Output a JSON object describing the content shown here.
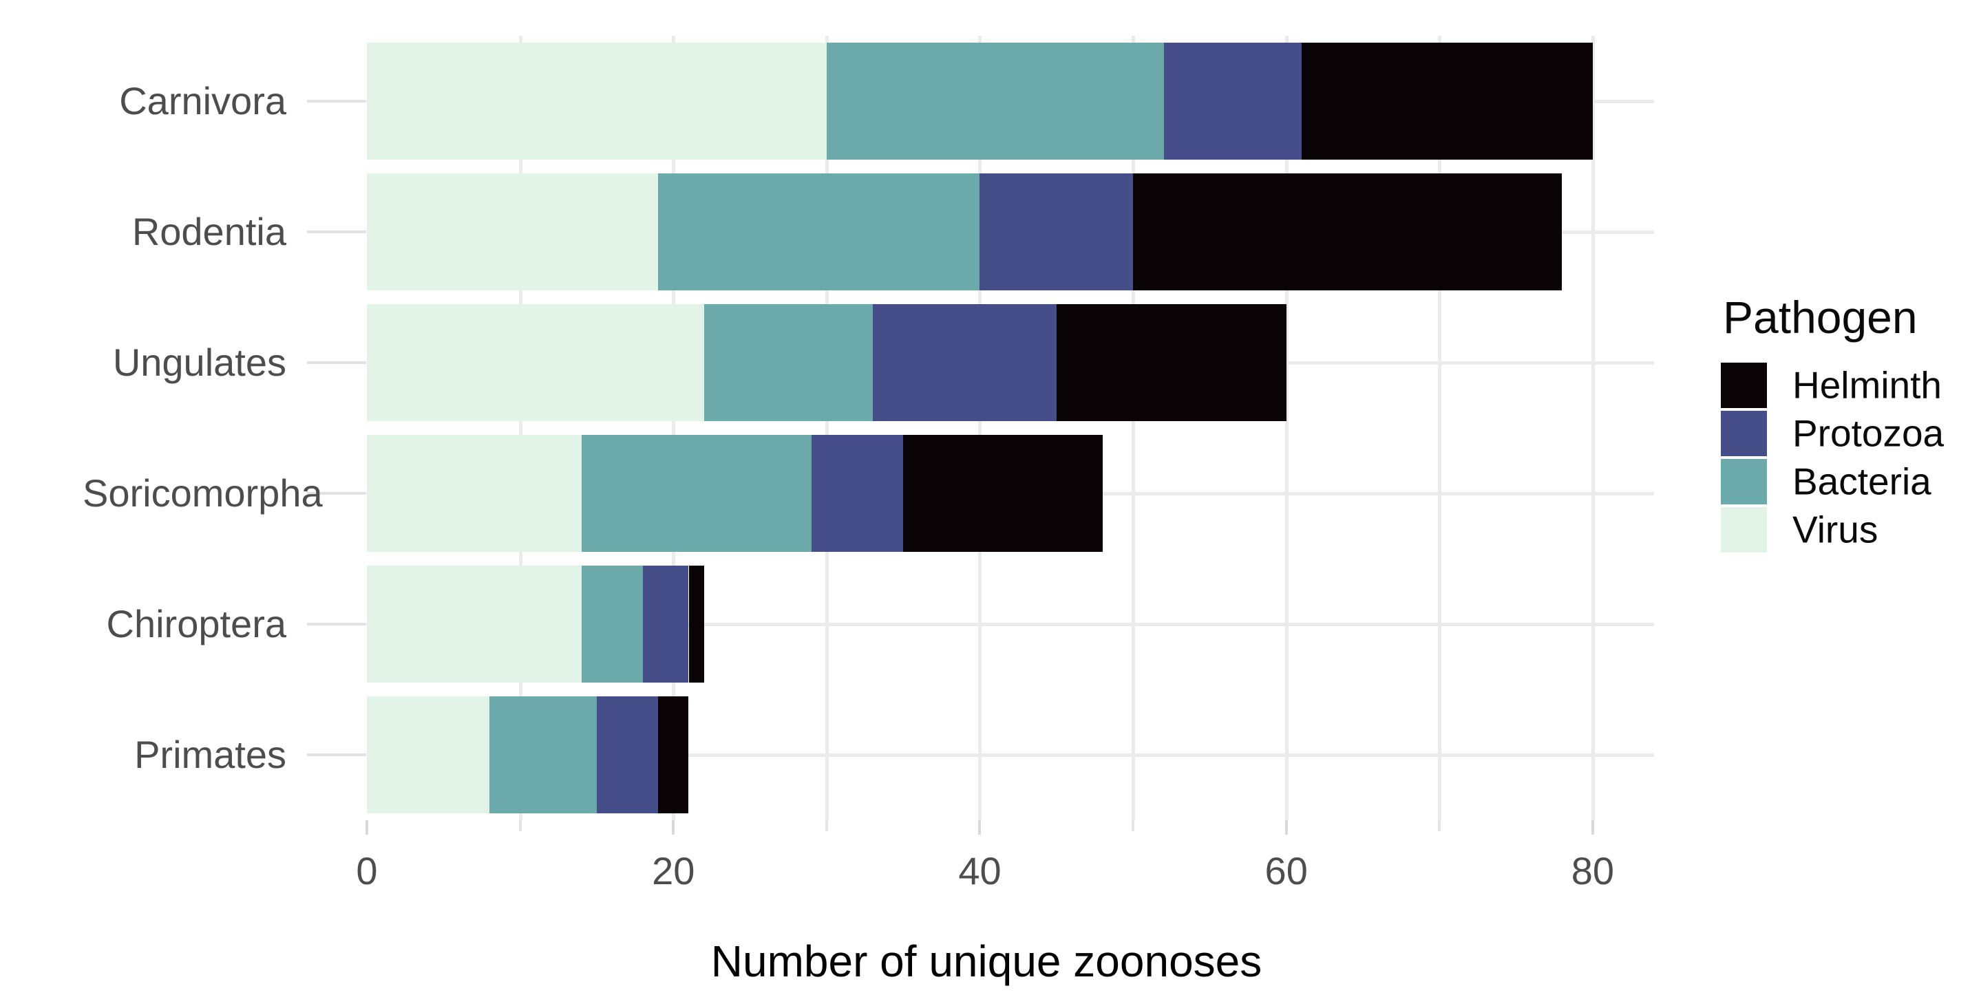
{
  "chart_data": {
    "type": "bar",
    "orientation": "horizontal",
    "stacked": true,
    "title": "",
    "xlabel": "Number of unique zoonoses",
    "ylabel": "",
    "categories": [
      "Carnivora",
      "Rodentia",
      "Ungulates",
      "Soricomorpha",
      "Chiroptera",
      "Primates"
    ],
    "series": [
      {
        "name": "Virus",
        "color": "#E2F3E7",
        "values": [
          30,
          19,
          22,
          14,
          14,
          8
        ]
      },
      {
        "name": "Bacteria",
        "color": "#6BA9AA",
        "values": [
          22,
          21,
          11,
          15,
          4,
          7
        ]
      },
      {
        "name": "Protozoa",
        "color": "#464E89",
        "values": [
          9,
          10,
          12,
          6,
          3,
          4
        ]
      },
      {
        "name": "Helminth",
        "color": "#0B0407",
        "values": [
          19,
          28,
          15,
          13,
          1,
          2
        ]
      }
    ],
    "totals": [
      80,
      78,
      60,
      48,
      22,
      21
    ],
    "xlim": [
      0,
      84
    ],
    "x_ticks": [
      0,
      20,
      40,
      60,
      80
    ],
    "x_minor_ticks": [
      10,
      30,
      50,
      70
    ],
    "grid": "vertical lines every 10 units; horizontal line at each category center",
    "legend": {
      "title": "Pathogen",
      "position": "right",
      "entries": [
        {
          "label": "Helminth",
          "color": "#0B0407"
        },
        {
          "label": "Protozoa",
          "color": "#464E89"
        },
        {
          "label": "Bacteria",
          "color": "#6BA9AA"
        },
        {
          "label": "Virus",
          "color": "#E2F3E7"
        }
      ]
    }
  },
  "style": {
    "background": "#FFFFFF",
    "grid_color": "#EBEBEB",
    "major_tick_color": "#D9D9D9",
    "minor_tick_color": "#E5E5E5",
    "y_tick_color": "#E2E2E2",
    "axis_text_color": "#4D4D4D",
    "axis_title_color": "#000000",
    "legend_text_color": "#0A0A0A"
  }
}
